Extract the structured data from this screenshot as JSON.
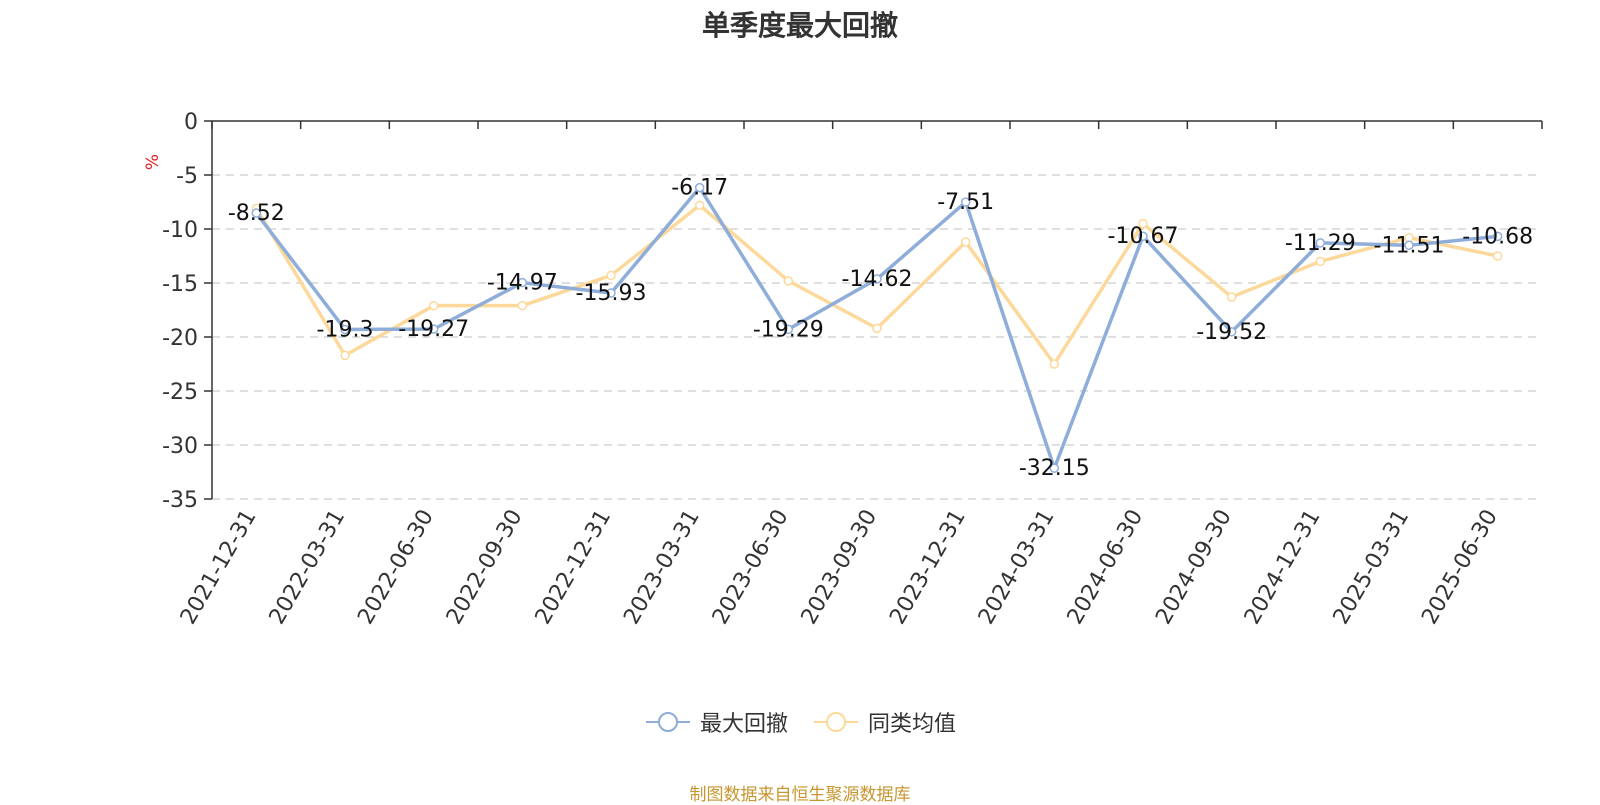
{
  "chart_data": {
    "type": "line",
    "title": "单季度最大回撤",
    "ylabel": "%",
    "ylim": [
      -35,
      0
    ],
    "yticks": [
      0,
      -5,
      -10,
      -15,
      -20,
      -25,
      -30,
      -35
    ],
    "categories": [
      "2021-12-31",
      "2022-03-31",
      "2022-06-30",
      "2022-09-30",
      "2022-12-31",
      "2023-03-31",
      "2023-06-30",
      "2023-09-30",
      "2023-12-31",
      "2024-03-31",
      "2024-06-30",
      "2024-09-30",
      "2024-12-31",
      "2025-03-31",
      "2025-06-30"
    ],
    "series": [
      {
        "name": "最大回撤",
        "color": "#8eadd9",
        "values": [
          -8.52,
          -19.3,
          -19.27,
          -14.97,
          -15.93,
          -6.17,
          -19.29,
          -14.62,
          -7.51,
          -32.15,
          -10.67,
          -19.52,
          -11.29,
          -11.51,
          -10.68
        ],
        "show_labels": true
      },
      {
        "name": "同类均值",
        "color": "#fcd99b",
        "values": [
          -8.1,
          -21.7,
          -17.1,
          -17.1,
          -14.3,
          -7.8,
          -14.8,
          -19.2,
          -11.2,
          -22.5,
          -9.5,
          -16.3,
          -13.0,
          -10.8,
          -12.5
        ],
        "show_labels": false
      }
    ],
    "grid": true,
    "legend_position": "bottom-center",
    "source_note": "制图数据来自恒生聚源数据库"
  }
}
